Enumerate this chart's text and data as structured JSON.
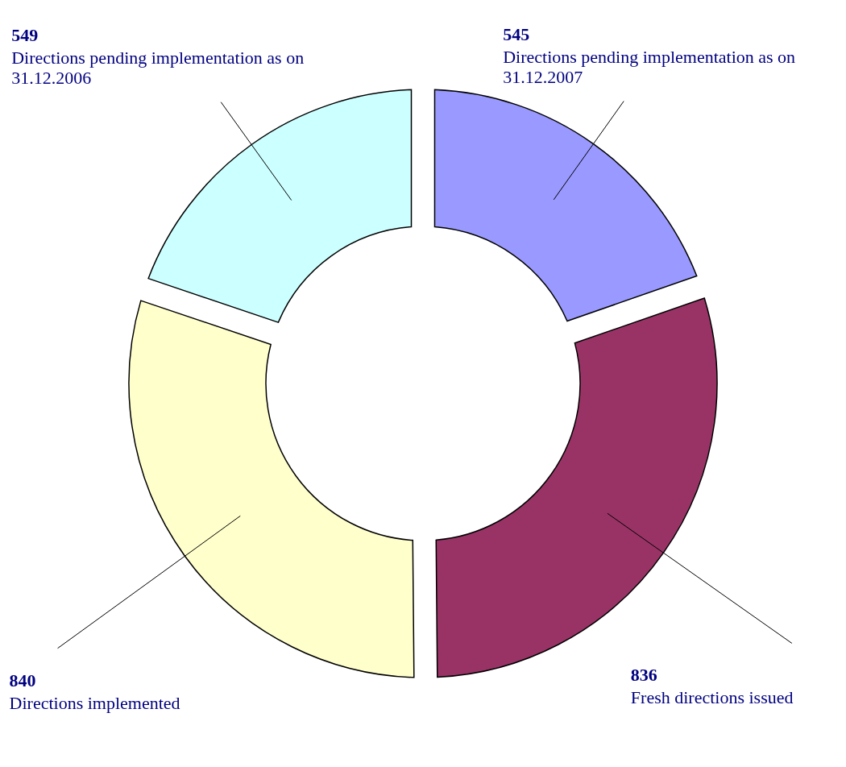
{
  "chart_data": {
    "type": "donut",
    "categories": [
      "Directions pending implementation as on 31.12.2007",
      "Fresh directions issued",
      "Directions implemented",
      "Directions pending implementation as on 31.12.2006"
    ],
    "values": [
      545,
      836,
      840,
      549
    ],
    "colors": [
      "#9999ff",
      "#993366",
      "#ffffcc",
      "#ccffff"
    ],
    "data_labels": true
  }
}
